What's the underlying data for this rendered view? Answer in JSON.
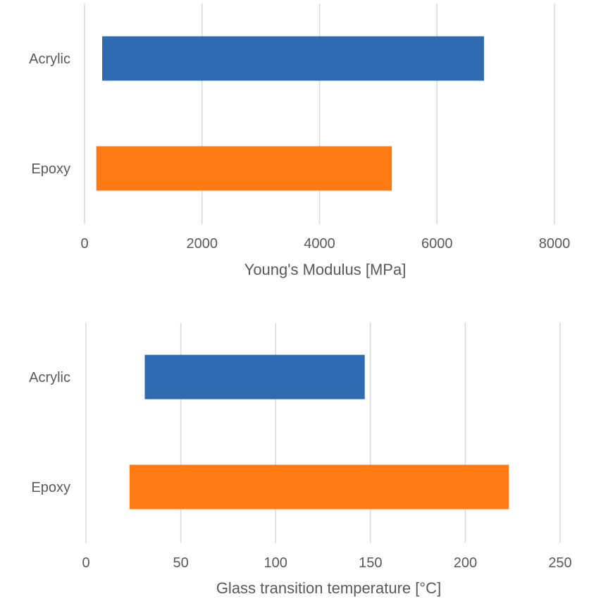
{
  "chart_data": [
    {
      "type": "bar",
      "orientation": "horizontal",
      "title": "",
      "xlabel": "Young's Modulus [MPa]",
      "ylabel": "",
      "xlim": [
        0,
        8000
      ],
      "xticks": [
        "0",
        "2000",
        "4000",
        "6000",
        "8000"
      ],
      "grid": true,
      "categories": [
        "Acrylic",
        "Epoxy"
      ],
      "ranges": [
        {
          "category": "Acrylic",
          "start": 300,
          "end": 6800,
          "color": "#2e6bb0"
        },
        {
          "category": "Epoxy",
          "start": 200,
          "end": 5230,
          "color": "#ff7a12"
        }
      ]
    },
    {
      "type": "bar",
      "orientation": "horizontal",
      "title": "",
      "xlabel": "Glass transition temperature [°C]",
      "ylabel": "",
      "xlim": [
        0,
        250
      ],
      "xticks": [
        "0",
        "50",
        "100",
        "150",
        "200",
        "250"
      ],
      "grid": true,
      "categories": [
        "Acrylic",
        "Epoxy"
      ],
      "ranges": [
        {
          "category": "Acrylic",
          "start": 31,
          "end": 147,
          "color": "#2e6bb0"
        },
        {
          "category": "Epoxy",
          "start": 23,
          "end": 223,
          "color": "#ff7a12"
        }
      ]
    }
  ]
}
